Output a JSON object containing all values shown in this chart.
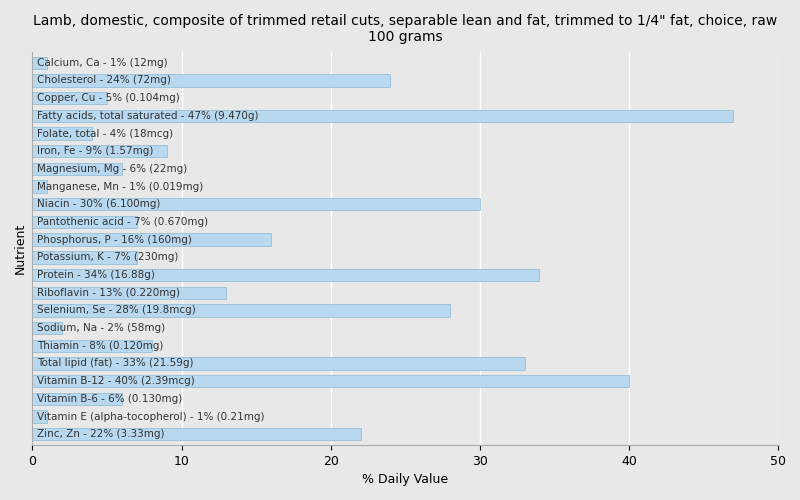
{
  "title": "Lamb, domestic, composite of trimmed retail cuts, separable lean and fat, trimmed to 1/4\" fat, choice, raw\n100 grams",
  "xlabel": "% Daily Value",
  "ylabel": "Nutrient",
  "xlim": [
    0,
    50
  ],
  "background_color": "#e8e8e8",
  "bar_color": "#b8d8f0",
  "bar_edge_color": "#7ab0cc",
  "nutrients": [
    {
      "label": "Calcium, Ca - 1% (12mg)",
      "value": 1
    },
    {
      "label": "Cholesterol - 24% (72mg)",
      "value": 24
    },
    {
      "label": "Copper, Cu - 5% (0.104mg)",
      "value": 5
    },
    {
      "label": "Fatty acids, total saturated - 47% (9.470g)",
      "value": 47
    },
    {
      "label": "Folate, total - 4% (18mcg)",
      "value": 4
    },
    {
      "label": "Iron, Fe - 9% (1.57mg)",
      "value": 9
    },
    {
      "label": "Magnesium, Mg - 6% (22mg)",
      "value": 6
    },
    {
      "label": "Manganese, Mn - 1% (0.019mg)",
      "value": 1
    },
    {
      "label": "Niacin - 30% (6.100mg)",
      "value": 30
    },
    {
      "label": "Pantothenic acid - 7% (0.670mg)",
      "value": 7
    },
    {
      "label": "Phosphorus, P - 16% (160mg)",
      "value": 16
    },
    {
      "label": "Potassium, K - 7% (230mg)",
      "value": 7
    },
    {
      "label": "Protein - 34% (16.88g)",
      "value": 34
    },
    {
      "label": "Riboflavin - 13% (0.220mg)",
      "value": 13
    },
    {
      "label": "Selenium, Se - 28% (19.8mcg)",
      "value": 28
    },
    {
      "label": "Sodium, Na - 2% (58mg)",
      "value": 2
    },
    {
      "label": "Thiamin - 8% (0.120mg)",
      "value": 8
    },
    {
      "label": "Total lipid (fat) - 33% (21.59g)",
      "value": 33
    },
    {
      "label": "Vitamin B-12 - 40% (2.39mcg)",
      "value": 40
    },
    {
      "label": "Vitamin B-6 - 6% (0.130mg)",
      "value": 6
    },
    {
      "label": "Vitamin E (alpha-tocopherol) - 1% (0.21mg)",
      "value": 1
    },
    {
      "label": "Zinc, Zn - 22% (3.33mg)",
      "value": 22
    }
  ],
  "title_fontsize": 10,
  "axis_label_fontsize": 9,
  "bar_label_fontsize": 7.5,
  "tick_fontsize": 9
}
